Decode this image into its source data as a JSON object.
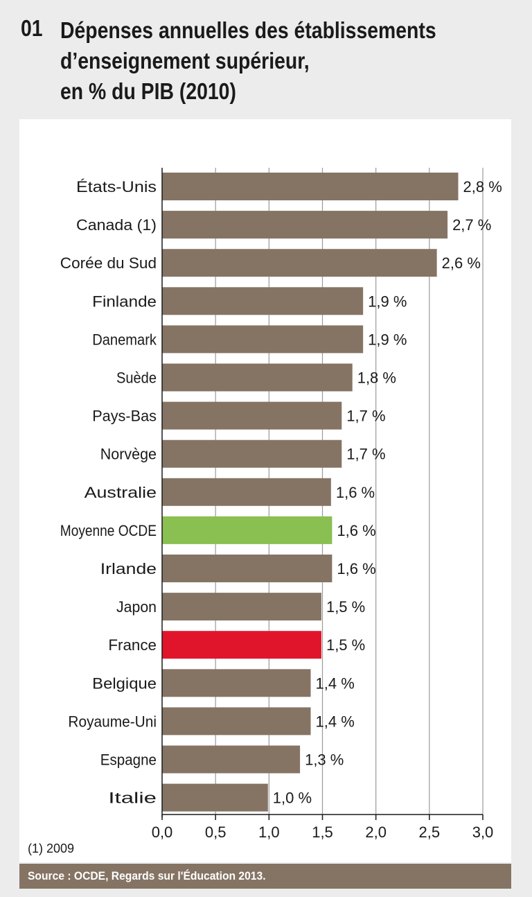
{
  "header": {
    "number": "01",
    "title_lines": [
      "Dépenses annuelles des établissements",
      "d’enseignement supérieur,",
      "en % du PIB (2010)"
    ]
  },
  "chart_data": {
    "type": "bar",
    "orientation": "horizontal",
    "title": "Dépenses annuelles des établissements d’enseignement supérieur, en % du PIB (2010)",
    "categories": [
      "États-Unis",
      "Canada (1)",
      "Corée du Sud",
      "Finlande",
      "Danemark",
      "Suède",
      "Pays-Bas",
      "Norvège",
      "Australie",
      "Moyenne OCDE",
      "Irlande",
      "Japon",
      "France",
      "Belgique",
      "Royaume-Uni",
      "Espagne",
      "Italie"
    ],
    "values": [
      2.77,
      2.67,
      2.57,
      1.88,
      1.88,
      1.78,
      1.68,
      1.68,
      1.58,
      1.59,
      1.59,
      1.49,
      1.49,
      1.39,
      1.39,
      1.29,
      0.99
    ],
    "data_labels": [
      "2,8 %",
      "2,7 %",
      "2,6 %",
      "1,9 %",
      "1,9 %",
      "1,8 %",
      "1,7 %",
      "1,7 %",
      "1,6 %",
      "1,6 %",
      "1,6 %",
      "1,5 %",
      "1,5 %",
      "1,4 %",
      "1,4 %",
      "1,3 %",
      "1,0 %"
    ],
    "colors": [
      "#857464",
      "#857464",
      "#857464",
      "#857464",
      "#857464",
      "#857464",
      "#857464",
      "#857464",
      "#857464",
      "#8abf52",
      "#857464",
      "#857464",
      "#e0152b",
      "#857464",
      "#857464",
      "#857464",
      "#857464"
    ],
    "xlim": [
      0,
      3
    ],
    "x_ticks": [
      0,
      0.5,
      1,
      1.5,
      2,
      2.5,
      3
    ],
    "x_tick_labels": [
      "0,0",
      "0,5",
      "1,0",
      "1,5",
      "2,0",
      "2,5",
      "3,0"
    ],
    "grid": true
  },
  "footnote": "(1) 2009",
  "source": "Source :  OCDE, Regards sur l'Éducation 2013."
}
